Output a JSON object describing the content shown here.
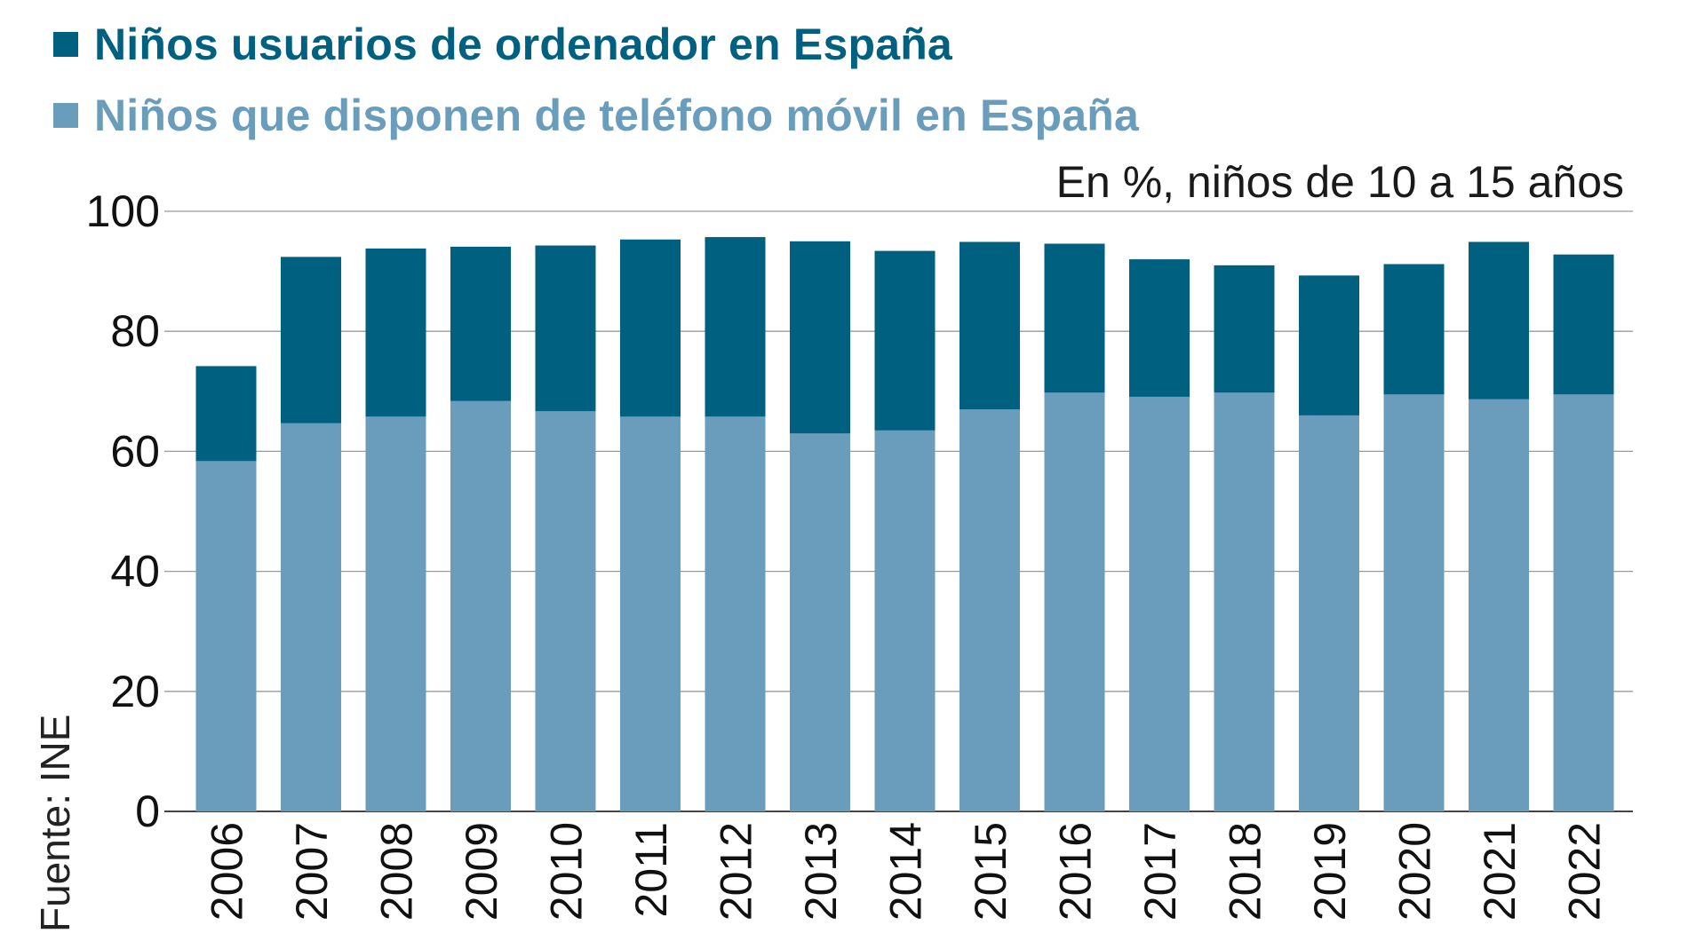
{
  "legend": [
    {
      "label": "Niños usuarios de ordenador en España",
      "color": "#006080"
    },
    {
      "label": "Niños que disponen de teléfono móvil en España",
      "color": "#6a9dbb"
    }
  ],
  "subtitle": "En %, niños de 10 a 15 años",
  "source": "Fuente: INE",
  "chart_data": {
    "type": "bar",
    "stacked_overlay": true,
    "title": "",
    "xlabel": "",
    "ylabel": "",
    "ylim": [
      0,
      100
    ],
    "yticks": [
      0,
      20,
      40,
      60,
      80,
      100
    ],
    "grid": true,
    "categories": [
      "2006",
      "2007",
      "2008",
      "2009",
      "2010",
      "2011",
      "2012",
      "2013",
      "2014",
      "2015",
      "2016",
      "2017",
      "2018",
      "2019",
      "2020",
      "2021",
      "2022"
    ],
    "series": [
      {
        "name": "Niños usuarios de ordenador en España",
        "color": "#006080",
        "values": [
          74.2,
          92.4,
          93.8,
          94.1,
          94.3,
          95.3,
          95.7,
          95.0,
          93.4,
          94.9,
          94.6,
          92.0,
          91.0,
          89.3,
          91.2,
          94.9,
          92.8
        ]
      },
      {
        "name": "Niños que disponen de teléfono móvil en España",
        "color": "#6a9dbb",
        "values": [
          58.4,
          64.7,
          65.8,
          68.4,
          66.7,
          65.8,
          65.8,
          63.0,
          63.5,
          67.0,
          69.8,
          69.1,
          69.8,
          66.0,
          69.5,
          68.7,
          69.5
        ]
      }
    ]
  }
}
